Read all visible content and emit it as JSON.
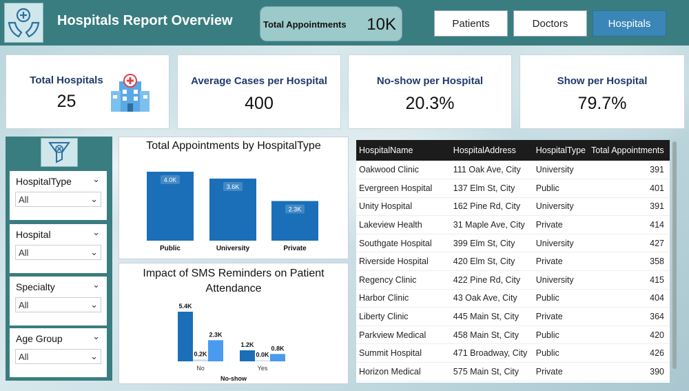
{
  "header": {
    "title": "Hospitals Report Overview",
    "total_appointments_label": "Total Appointments",
    "total_appointments_value": "10K",
    "nav": [
      "Patients",
      "Doctors",
      "Hospitals"
    ]
  },
  "kpis": [
    {
      "label": "Total Hospitals",
      "value": "25"
    },
    {
      "label": "Average Cases per Hospital",
      "value": "400"
    },
    {
      "label": "No-show per Hospital",
      "value": "20.3%"
    },
    {
      "label": "Show per Hospital",
      "value": "79.7%"
    }
  ],
  "filters": [
    {
      "name": "HospitalType",
      "value": "All"
    },
    {
      "name": "Hospital",
      "value": "All"
    },
    {
      "name": "Specialty",
      "value": "All"
    },
    {
      "name": "Age Group",
      "value": "All"
    }
  ],
  "colors": {
    "header": "#3a7d80",
    "bar": "#1a6fb8",
    "bar_light": "#4a9af0"
  },
  "chart_data": [
    {
      "type": "bar",
      "title": "Total Appointments by HospitalType",
      "categories": [
        "Public",
        "University",
        "Private"
      ],
      "values": [
        4.0,
        3.6,
        2.3
      ],
      "labels": [
        "4.0K",
        "3.6K",
        "2.3K"
      ],
      "ylim": [
        0,
        4.0
      ]
    },
    {
      "type": "bar",
      "title": "Impact of SMS Reminders on Patient Attendance",
      "xlabel": "No-show",
      "categories": [
        "No",
        "Yes"
      ],
      "series": [
        {
          "name": "s1",
          "values": [
            5.4,
            1.2
          ],
          "labels": [
            "5.4K",
            "1.2K"
          ]
        },
        {
          "name": "s2",
          "values": [
            0.2,
            0.0
          ],
          "labels": [
            "0.2K",
            "0.0K"
          ]
        },
        {
          "name": "s3",
          "values": [
            2.3,
            0.8
          ],
          "labels": [
            "2.3K",
            "0.8K"
          ]
        }
      ],
      "ylim": [
        0,
        5.4
      ]
    }
  ],
  "table": {
    "columns": [
      "HospitalName",
      "HospitalAddress",
      "HospitalType",
      "Total Appointments"
    ],
    "rows": [
      [
        "Oakwood Clinic",
        "111 Oak Ave, City",
        "University",
        "391"
      ],
      [
        "Evergreen Hospital",
        "137 Elm St, City",
        "Public",
        "401"
      ],
      [
        "Unity Hospital",
        "162 Pine Rd, City",
        "University",
        "391"
      ],
      [
        "Lakeview Health",
        "31 Maple Ave, City",
        "Private",
        "414"
      ],
      [
        "Southgate Hospital",
        "399 Elm St, City",
        "University",
        "427"
      ],
      [
        "Riverside Hospital",
        "420 Elm St, City",
        "Private",
        "358"
      ],
      [
        "Regency Clinic",
        "422 Pine Rd, City",
        "University",
        "415"
      ],
      [
        "Harbor Clinic",
        "43 Oak Ave, City",
        "Public",
        "404"
      ],
      [
        "Liberty Clinic",
        "445 Main St, City",
        "Private",
        "364"
      ],
      [
        "Parkview Medical",
        "458 Main St, City",
        "Public",
        "420"
      ],
      [
        "Summit Hospital",
        "471 Broadway, City",
        "Public",
        "426"
      ],
      [
        "Horizon Medical",
        "575 Main St, City",
        "Private",
        "390"
      ]
    ]
  }
}
